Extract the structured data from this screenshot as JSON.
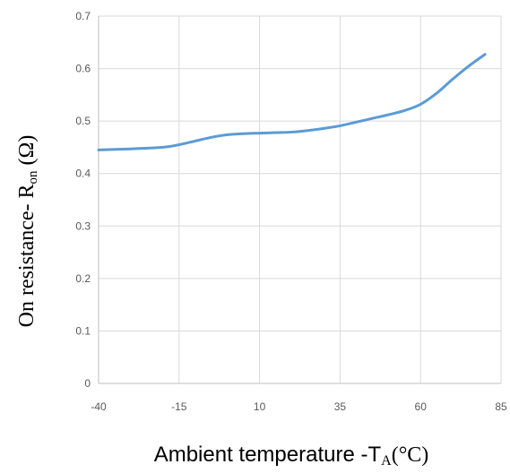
{
  "chart_data": {
    "type": "line",
    "title": "",
    "xlabel_parts": {
      "prefix": "Ambient temperature -T",
      "subscript": "A",
      "suffix": "(°C)"
    },
    "ylabel_parts": {
      "prefix": "On resistance- R",
      "subscript": "on",
      "suffix": " (Ω)"
    },
    "xlim": [
      -40,
      85
    ],
    "ylim": [
      0,
      0.7
    ],
    "x_ticks": [
      -40,
      -15,
      10,
      35,
      60,
      85
    ],
    "y_ticks": [
      0,
      0.1,
      0.2,
      0.3,
      0.4,
      0.5,
      0.6,
      0.7
    ],
    "grid": true,
    "legend": "none",
    "series": [
      {
        "color": "#5b9bd5",
        "x": [
          -40,
          -30,
          -20,
          -15,
          -10,
          -5,
          0,
          5,
          10,
          15,
          20,
          25,
          30,
          35,
          40,
          45,
          50,
          55,
          60,
          65,
          70,
          75,
          80
        ],
        "y": [
          0.445,
          0.447,
          0.45,
          0.455,
          0.462,
          0.469,
          0.474,
          0.476,
          0.477,
          0.478,
          0.479,
          0.482,
          0.486,
          0.491,
          0.498,
          0.505,
          0.512,
          0.52,
          0.532,
          0.553,
          0.58,
          0.605,
          0.627
        ]
      }
    ]
  }
}
